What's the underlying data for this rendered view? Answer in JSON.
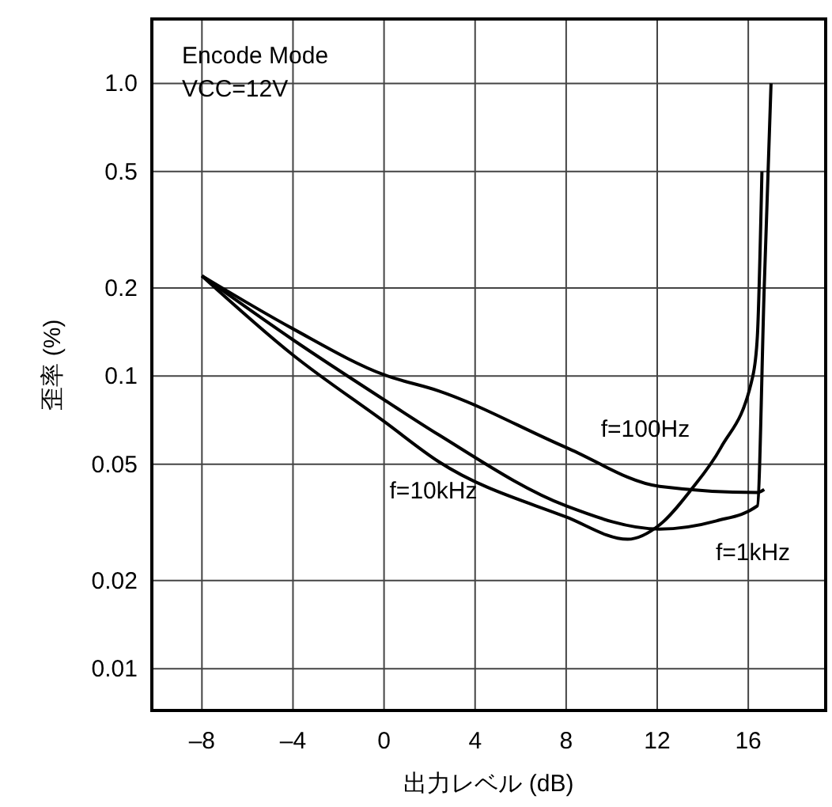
{
  "chart_data": {
    "type": "line",
    "xlabel": "出力レベル (dB)",
    "ylabel": "歪率 (%)",
    "log": "y",
    "grid": true,
    "line_style": "solid",
    "marker": "none",
    "xlim": [
      -10.2,
      19.4
    ],
    "xticks": [
      {
        "value": -8,
        "label": "–8"
      },
      {
        "value": -4,
        "label": "–4"
      },
      0,
      4,
      8,
      12,
      16
    ],
    "ylim": [
      0.0072,
      1.66
    ],
    "yticks": [
      0.01,
      0.02,
      0.05,
      0.1,
      0.2,
      0.5,
      {
        "value": 1,
        "label": "1.0"
      }
    ],
    "series": [
      {
        "color": "#000000",
        "x": [
          -8,
          -4,
          0,
          2.4,
          8,
          12.1,
          16.4,
          16.7
        ],
        "values": [
          0.22,
          0.145,
          0.101,
          0.089,
          0.057,
          0.042,
          0.04,
          0.041
        ]
      },
      {
        "color": "#000000",
        "x": [
          -8,
          -4,
          0,
          2.4,
          8,
          12.1,
          14.6,
          16.4,
          16.7,
          17
        ],
        "values": [
          0.22,
          0.133,
          0.083,
          0.063,
          0.036,
          0.03,
          0.032,
          0.036,
          0.2,
          1.0
        ]
      },
      {
        "color": "#000000",
        "x": [
          -8,
          -4,
          0,
          2.4,
          8,
          10.7,
          12.1,
          13.5,
          14.8,
          16.2,
          16.4,
          16.6
        ],
        "values": [
          0.22,
          0.118,
          0.07,
          0.051,
          0.033,
          0.0277,
          0.031,
          0.041,
          0.057,
          0.1,
          0.137,
          0.5
        ]
      }
    ],
    "annotations": [
      "Encode Mode",
      "VCC=12V",
      "f=100Hz",
      "f=10kHz",
      "f=1kHz"
    ]
  }
}
